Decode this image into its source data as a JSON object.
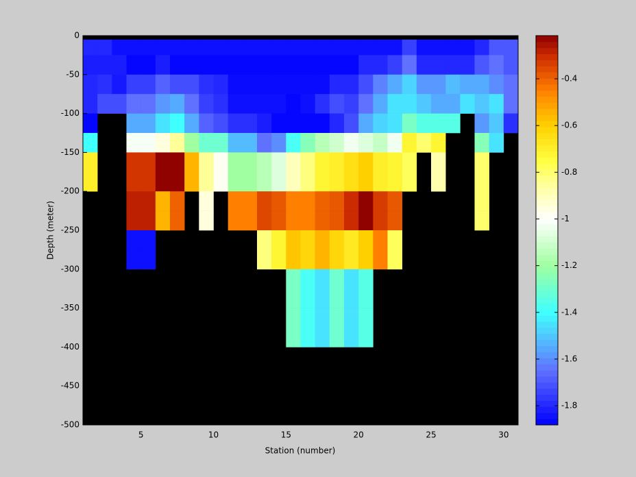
{
  "chart_data": {
    "type": "heatmap",
    "xlabel": "Station (number)",
    "ylabel": "Depth (meter)",
    "xlim": [
      1,
      31
    ],
    "ylim": [
      -500,
      0
    ],
    "xticks": [
      5,
      10,
      15,
      20,
      25,
      30
    ],
    "yticks": [
      0,
      -50,
      -100,
      -150,
      -200,
      -250,
      -300,
      -350,
      -400,
      -450,
      -500
    ],
    "x_edges": [
      1,
      2,
      3,
      4,
      5,
      6,
      7,
      8,
      9,
      10,
      11,
      12,
      13,
      14,
      15,
      16,
      17,
      18,
      19,
      20,
      21,
      22,
      23,
      24,
      25,
      26,
      27,
      28,
      29,
      30,
      31
    ],
    "y_edges": [
      0,
      -5,
      -25,
      -50,
      -75,
      -100,
      -125,
      -150,
      -175,
      -200,
      -225,
      -250,
      -275,
      -300,
      -325,
      -350,
      -375,
      -400
    ],
    "values": [
      [
        null,
        null,
        null,
        null,
        null,
        null,
        null,
        null,
        null,
        null,
        null,
        null,
        null,
        null,
        null,
        null,
        null,
        null,
        null,
        null,
        null,
        null,
        null,
        null,
        null,
        null,
        null,
        null,
        null,
        null
      ],
      [
        -1.8,
        -1.8,
        -1.85,
        -1.85,
        -1.85,
        -1.85,
        -1.85,
        -1.85,
        -1.85,
        -1.85,
        -1.85,
        -1.85,
        -1.85,
        -1.85,
        -1.85,
        -1.85,
        -1.85,
        -1.85,
        -1.85,
        -1.85,
        -1.85,
        -1.85,
        -1.75,
        -1.85,
        -1.85,
        -1.85,
        -1.85,
        -1.8,
        -1.7,
        -1.7
      ],
      [
        -1.82,
        -1.82,
        -1.82,
        -1.87,
        -1.87,
        -1.82,
        -1.87,
        -1.87,
        -1.87,
        -1.87,
        -1.87,
        -1.87,
        -1.87,
        -1.87,
        -1.87,
        -1.87,
        -1.87,
        -1.87,
        -1.87,
        -1.8,
        -1.8,
        -1.75,
        -1.65,
        -1.8,
        -1.8,
        -1.8,
        -1.8,
        -1.7,
        -1.65,
        -1.7
      ],
      [
        -1.8,
        -1.78,
        -1.83,
        -1.75,
        -1.75,
        -1.68,
        -1.72,
        -1.72,
        -1.78,
        -1.8,
        -1.86,
        -1.86,
        -1.86,
        -1.86,
        -1.86,
        -1.86,
        -1.86,
        -1.8,
        -1.8,
        -1.72,
        -1.62,
        -1.55,
        -1.48,
        -1.58,
        -1.58,
        -1.52,
        -1.55,
        -1.55,
        -1.6,
        -1.65
      ],
      [
        -1.8,
        -1.72,
        -1.72,
        -1.65,
        -1.65,
        -1.58,
        -1.55,
        -1.65,
        -1.75,
        -1.78,
        -1.85,
        -1.85,
        -1.85,
        -1.85,
        -1.87,
        -1.85,
        -1.78,
        -1.72,
        -1.75,
        -1.65,
        -1.55,
        -1.45,
        -1.45,
        -1.5,
        -1.55,
        -1.55,
        -1.45,
        -1.5,
        -1.45,
        -1.65
      ],
      [
        -1.87,
        null,
        null,
        -1.55,
        -1.55,
        -1.45,
        -1.4,
        -1.55,
        -1.68,
        -1.72,
        -1.78,
        -1.78,
        -1.82,
        -1.87,
        -1.87,
        -1.87,
        -1.87,
        -1.8,
        -1.72,
        -1.55,
        -1.48,
        -1.45,
        -1.28,
        -1.35,
        -1.35,
        -1.35,
        null,
        -1.58,
        -1.5,
        -1.78
      ],
      [
        -1.4,
        null,
        null,
        -1.02,
        -1.02,
        -0.95,
        -0.85,
        -1.2,
        -1.3,
        -1.3,
        -1.52,
        -1.52,
        -1.65,
        -1.6,
        -1.38,
        -1.25,
        -1.15,
        -1.1,
        -1.03,
        -1.07,
        -1.12,
        -1.03,
        -0.72,
        -0.8,
        -0.72,
        null,
        null,
        -1.25,
        -1.45,
        null
      ],
      [
        -0.7,
        null,
        null,
        -0.32,
        -0.32,
        -0.22,
        -0.22,
        -0.55,
        -0.85,
        -0.98,
        -1.2,
        -1.2,
        -1.15,
        -1.07,
        -0.9,
        -0.82,
        -0.72,
        -0.7,
        -0.65,
        -0.6,
        -0.7,
        -0.72,
        -0.78,
        null,
        -0.88,
        null,
        null,
        -0.8,
        null,
        null
      ],
      [
        -0.7,
        null,
        null,
        -0.32,
        -0.32,
        -0.22,
        -0.22,
        -0.55,
        -0.85,
        -0.98,
        -1.2,
        -1.2,
        -1.15,
        -1.07,
        -0.9,
        -0.82,
        -0.72,
        -0.7,
        -0.65,
        -0.6,
        -0.7,
        -0.72,
        -0.78,
        null,
        -0.88,
        null,
        null,
        -0.8,
        null,
        null
      ],
      [
        null,
        null,
        null,
        -0.28,
        -0.28,
        -0.55,
        -0.4,
        null,
        -0.95,
        null,
        -0.45,
        -0.45,
        -0.35,
        -0.38,
        -0.45,
        -0.45,
        -0.4,
        -0.38,
        -0.3,
        -0.22,
        -0.33,
        -0.38,
        null,
        null,
        null,
        null,
        null,
        -0.8,
        null,
        null
      ],
      [
        null,
        null,
        null,
        -0.28,
        -0.28,
        -0.55,
        -0.4,
        null,
        -0.95,
        null,
        -0.45,
        -0.45,
        -0.35,
        -0.38,
        -0.45,
        -0.45,
        -0.4,
        -0.38,
        -0.3,
        -0.22,
        -0.33,
        -0.38,
        null,
        null,
        null,
        null,
        null,
        -0.8,
        null,
        null
      ],
      [
        null,
        null,
        null,
        -1.85,
        -1.85,
        null,
        null,
        null,
        null,
        null,
        null,
        null,
        -0.82,
        -0.72,
        -0.58,
        -0.62,
        -0.55,
        -0.62,
        -0.68,
        -0.6,
        -0.45,
        -0.78,
        null,
        null,
        null,
        null,
        null,
        null,
        null,
        null
      ],
      [
        null,
        null,
        null,
        -1.85,
        -1.85,
        null,
        null,
        null,
        null,
        null,
        null,
        null,
        -0.82,
        -0.72,
        -0.58,
        -0.62,
        -0.55,
        -0.62,
        -0.68,
        -0.6,
        -0.45,
        -0.78,
        null,
        null,
        null,
        null,
        null,
        null,
        null,
        null
      ],
      [
        null,
        null,
        null,
        null,
        null,
        null,
        null,
        null,
        null,
        null,
        null,
        null,
        null,
        null,
        -1.28,
        -1.38,
        -1.45,
        -1.3,
        -1.45,
        -1.35,
        null,
        null,
        null,
        null,
        null,
        null,
        null,
        null,
        null,
        null
      ],
      [
        null,
        null,
        null,
        null,
        null,
        null,
        null,
        null,
        null,
        null,
        null,
        null,
        null,
        null,
        -1.28,
        -1.38,
        -1.45,
        -1.3,
        -1.45,
        -1.35,
        null,
        null,
        null,
        null,
        null,
        null,
        null,
        null,
        null,
        null
      ],
      [
        null,
        null,
        null,
        null,
        null,
        null,
        null,
        null,
        null,
        null,
        null,
        null,
        null,
        null,
        -1.28,
        -1.38,
        -1.45,
        -1.3,
        -1.45,
        -1.35,
        null,
        null,
        null,
        null,
        null,
        null,
        null,
        null,
        null,
        null
      ],
      [
        null,
        null,
        null,
        null,
        null,
        null,
        null,
        null,
        null,
        null,
        null,
        null,
        null,
        null,
        -1.28,
        -1.38,
        -1.45,
        -1.3,
        -1.45,
        -1.35,
        null,
        null,
        null,
        null,
        null,
        null,
        null,
        null,
        null,
        null
      ]
    ],
    "missing_color": "#000000",
    "clim": [
      -1.882,
      -0.215
    ],
    "cticks": [
      -0.4,
      -0.6,
      -0.8,
      -1,
      -1.2,
      -1.4,
      -1.6,
      -1.8
    ],
    "colormap": [
      {
        "value": -1.882,
        "color": "#0000ff"
      },
      {
        "value": -1.65,
        "color": "#6070ff"
      },
      {
        "value": -1.5,
        "color": "#50c8ff"
      },
      {
        "value": -1.4,
        "color": "#40ffff"
      },
      {
        "value": -1.2,
        "color": "#a0ffa0"
      },
      {
        "value": -1.0,
        "color": "#ffffff"
      },
      {
        "value": -0.85,
        "color": "#ffff99"
      },
      {
        "value": -0.75,
        "color": "#ffff40"
      },
      {
        "value": -0.6,
        "color": "#ffd000"
      },
      {
        "value": -0.45,
        "color": "#ff8000"
      },
      {
        "value": -0.3,
        "color": "#cc2a00"
      },
      {
        "value": -0.215,
        "color": "#8b0000"
      }
    ]
  }
}
